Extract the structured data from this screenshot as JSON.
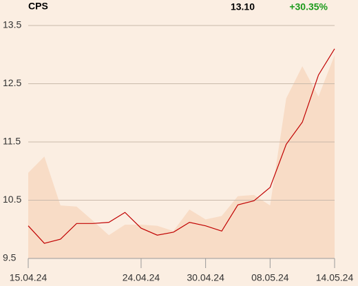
{
  "chart_data": {
    "type": "line",
    "title": "CPS",
    "last_value": "13.10",
    "change": "+30.35%",
    "change_color": "#1a9a1a",
    "categories": [
      "15.04.24",
      null,
      null,
      null,
      null,
      null,
      null,
      "24.04.24",
      null,
      null,
      null,
      "30.04.24",
      null,
      null,
      null,
      "08.05.24",
      null,
      null,
      null,
      "14.05.24"
    ],
    "series": [
      {
        "kind": "area",
        "color": "#f8dcc6",
        "values": [
          10.97,
          11.25,
          10.41,
          10.39,
          10.15,
          9.9,
          10.08,
          10.08,
          10.06,
          9.97,
          10.34,
          10.17,
          10.23,
          10.57,
          10.59,
          10.41,
          12.25,
          12.8,
          12.28,
          12.99
        ]
      },
      {
        "kind": "line",
        "color": "#c00000",
        "values": [
          10.06,
          9.76,
          9.83,
          10.1,
          10.1,
          10.12,
          10.29,
          10.02,
          9.9,
          9.95,
          10.12,
          10.06,
          9.97,
          10.42,
          10.49,
          10.72,
          11.46,
          11.84,
          12.65,
          13.1
        ]
      }
    ],
    "ylim": [
      9.5,
      13.5
    ],
    "yticks": [
      13.5,
      12.5,
      11.5,
      10.5,
      9.5
    ],
    "grid": true
  }
}
